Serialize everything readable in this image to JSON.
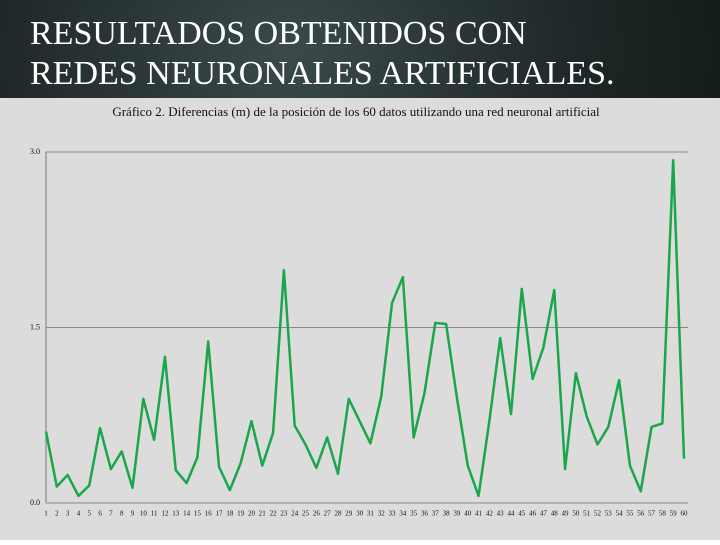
{
  "slide": {
    "title_lines": [
      "RESULTADOS  OBTENIDOS CON",
      "REDES NEURONALES ARTIFICIALES."
    ]
  },
  "chart_data": {
    "type": "line",
    "title": "Gráfico 2. Diferencias (m) de la posición de los 60 datos utilizando una red neuronal artificial",
    "categories": [
      "1",
      "2",
      "3",
      "4",
      "5",
      "6",
      "7",
      "8",
      "9",
      "10",
      "11",
      "12",
      "13",
      "14",
      "15",
      "16",
      "17",
      "18",
      "19",
      "20",
      "21",
      "22",
      "23",
      "24",
      "25",
      "26",
      "27",
      "28",
      "29",
      "30",
      "31",
      "32",
      "33",
      "34",
      "35",
      "36",
      "37",
      "38",
      "39",
      "40",
      "41",
      "42",
      "43",
      "44",
      "45",
      "46",
      "47",
      "48",
      "49",
      "50",
      "51",
      "52",
      "53",
      "54",
      "55",
      "56",
      "57",
      "58",
      "59",
      "60"
    ],
    "series": [
      {
        "color": "#1aa64a",
        "values": [
          0.61,
          0.14,
          0.24,
          0.06,
          0.15,
          0.64,
          0.29,
          0.44,
          0.13,
          0.89,
          0.54,
          1.25,
          0.28,
          0.17,
          0.39,
          1.38,
          0.31,
          0.11,
          0.34,
          0.7,
          0.32,
          0.6,
          1.99,
          0.66,
          0.5,
          0.3,
          0.56,
          0.25,
          0.89,
          0.7,
          0.51,
          0.91,
          1.71,
          1.93,
          0.56,
          0.94,
          1.54,
          1.53,
          0.9,
          0.32,
          0.06,
          0.7,
          1.41,
          0.76,
          1.83,
          1.06,
          1.33,
          1.82,
          0.29,
          1.11,
          0.74,
          0.5,
          0.65,
          1.05,
          0.32,
          0.1,
          0.65,
          0.68,
          2.93,
          0.38
        ]
      }
    ],
    "ylim": [
      0,
      3
    ],
    "yticks": [
      {
        "value": 0,
        "label": "0.0"
      },
      {
        "value": 1.5,
        "label": "1.5"
      },
      {
        "value": 3,
        "label": "3.0"
      }
    ],
    "grid": true
  }
}
